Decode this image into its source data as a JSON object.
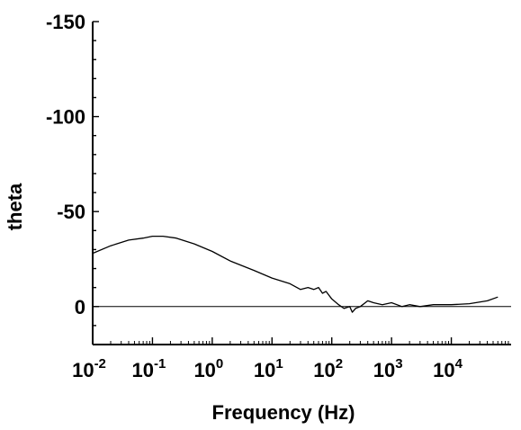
{
  "chart_data": {
    "type": "line",
    "title": "",
    "xlabel": "Frequency (Hz)",
    "ylabel": "theta",
    "x_scale": "log",
    "xlim": [
      0.01,
      100000
    ],
    "ylim": [
      20,
      -150
    ],
    "y_inverted": true,
    "grid": false,
    "legend": "none",
    "x_ticks": [
      {
        "value": 0.01,
        "base": "10",
        "exp": "-2"
      },
      {
        "value": 0.1,
        "base": "10",
        "exp": "-1"
      },
      {
        "value": 1,
        "base": "10",
        "exp": "0"
      },
      {
        "value": 10,
        "base": "10",
        "exp": "1"
      },
      {
        "value": 100,
        "base": "10",
        "exp": "2"
      },
      {
        "value": 1000,
        "base": "10",
        "exp": "3"
      },
      {
        "value": 10000,
        "base": "10",
        "exp": "4"
      }
    ],
    "y_ticks": [
      {
        "value": -150,
        "label": "-150"
      },
      {
        "value": -100,
        "label": "-100"
      },
      {
        "value": -50,
        "label": "-50"
      },
      {
        "value": 0,
        "label": "0"
      }
    ],
    "reference_line": {
      "y": 0
    },
    "series": [
      {
        "color": "#000000",
        "x": [
          0.01,
          0.02,
          0.04,
          0.07,
          0.1,
          0.15,
          0.25,
          0.5,
          1,
          2,
          5,
          10,
          20,
          30,
          40,
          50,
          60,
          70,
          80,
          100,
          130,
          160,
          200,
          220,
          250,
          300,
          400,
          500,
          700,
          1000,
          1500,
          2000,
          3000,
          5000,
          10000,
          20000,
          40000,
          60000
        ],
        "y": [
          -28,
          -32,
          -35,
          -36,
          -37,
          -37,
          -36,
          -33,
          -29,
          -24,
          -19,
          -15,
          -12,
          -9,
          -10,
          -9,
          -10,
          -7,
          -8,
          -4,
          -1,
          1,
          0,
          3,
          1,
          0,
          -3,
          -2,
          -1,
          -2,
          0,
          -1,
          0,
          -1,
          -1,
          -1.5,
          -3,
          -5
        ]
      }
    ]
  }
}
